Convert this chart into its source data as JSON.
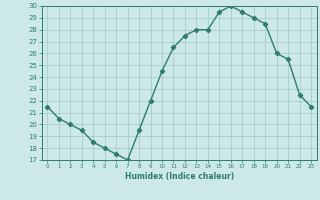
{
  "x": [
    0,
    1,
    2,
    3,
    4,
    5,
    6,
    7,
    8,
    9,
    10,
    11,
    12,
    13,
    14,
    15,
    16,
    17,
    18,
    19,
    20,
    21,
    22,
    23
  ],
  "y": [
    21.5,
    20.5,
    20.0,
    19.5,
    18.5,
    18.0,
    17.5,
    17.0,
    19.5,
    22.0,
    24.5,
    26.5,
    27.5,
    28.0,
    28.0,
    29.5,
    30.0,
    29.5,
    29.0,
    28.5,
    26.0,
    25.5,
    22.5,
    21.5
  ],
  "line_color": "#2e7d6e",
  "bg_color": "#cce8e8",
  "grid_color": "#a0c8c8",
  "xlabel": "Humidex (Indice chaleur)",
  "ylim": [
    17,
    30
  ],
  "xlim": [
    -0.5,
    23.5
  ],
  "yticks": [
    17,
    18,
    19,
    20,
    21,
    22,
    23,
    24,
    25,
    26,
    27,
    28,
    29,
    30
  ],
  "xticks": [
    0,
    1,
    2,
    3,
    4,
    5,
    6,
    7,
    8,
    9,
    10,
    11,
    12,
    13,
    14,
    15,
    16,
    17,
    18,
    19,
    20,
    21,
    22,
    23
  ],
  "marker": "D",
  "marker_size": 2.2,
  "line_width": 1.0
}
